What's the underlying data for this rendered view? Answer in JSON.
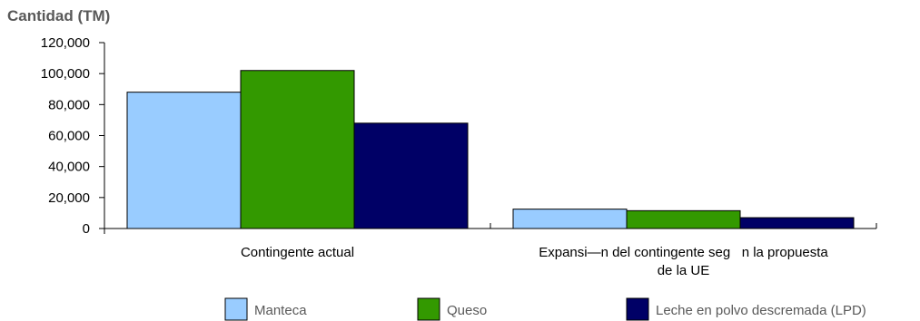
{
  "chart_data": {
    "type": "bar",
    "ylabel": "Cantidad (TM)",
    "xlabel": "",
    "categories": [
      [
        "Contingente actual"
      ],
      [
        "Expansi—n del contingente seg   n la propuesta",
        "de la UE"
      ]
    ],
    "series": [
      {
        "name": "Manteca",
        "values": [
          88000,
          12500
        ],
        "color": "#99ccff"
      },
      {
        "name": "Queso",
        "values": [
          102000,
          11500
        ],
        "color": "#339900"
      },
      {
        "name": "Leche en polvo descremada (LPD)",
        "values": [
          68000,
          7000
        ],
        "color": "#000066"
      }
    ],
    "yticks": [
      "0",
      "20,000",
      "40,000",
      "60,000",
      "80,000",
      "100,000",
      "120,000"
    ],
    "ylim": [
      0,
      120000
    ],
    "grid": false,
    "legend_position": "bottom"
  }
}
